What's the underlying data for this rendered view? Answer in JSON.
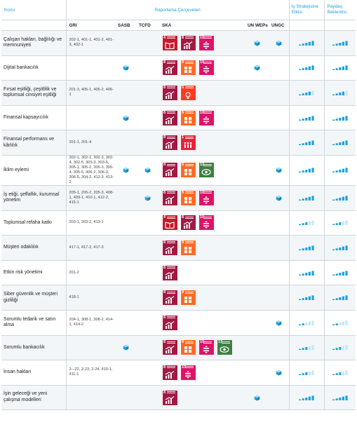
{
  "header": {
    "topic": "Konu",
    "frameworks": "Raporlama Çerçeveleri",
    "strategy_impact": "İş Stratejisine Etkisi",
    "stakeholder_expectation": "Paydaş Beklentisi"
  },
  "columns": {
    "gri": "GRI",
    "sasb": "SASB",
    "tcfd": "TCFD",
    "ska": "SKA",
    "unweps": "UN WEPs",
    "ungc": "UNGC"
  },
  "colors": {
    "accent": "#1aa3e0",
    "bar_high": "#1aa3e0",
    "bar_low": "#c5e7f7",
    "sdg1": "#e5243b",
    "sdg4": "#c5192d",
    "sdg5": "#ff3a21",
    "sdg8": "#a21942",
    "sdg9": "#fd6925",
    "sdg10": "#dd1367",
    "sdg13": "#3f7e44"
  },
  "icons": {
    "framework_mark": "cube-icon",
    "rating": "rising-bars-icon"
  },
  "rows": [
    {
      "topic": "Çalışan hakları, bağlılığı ve memnuniyeti",
      "gri": "202-1, 401-1, 401-2, 401-3, 402-1",
      "sasb": false,
      "tcfd": false,
      "sdgs": [
        4,
        8,
        10
      ],
      "unweps": true,
      "ungc": true,
      "strategy": 5,
      "stakeholder": 5
    },
    {
      "topic": "Dijital bankacılık",
      "gri": "",
      "sasb": true,
      "tcfd": false,
      "sdgs": [
        8,
        9,
        10
      ],
      "unweps": true,
      "ungc": false,
      "strategy": 5,
      "stakeholder": 5
    },
    {
      "topic": "Fırsat eşitliği, çeşitlilik ve toplumsal cinsiyet eşitliği",
      "gri": "201-3, 405-1, 405-2, 406-1",
      "sasb": false,
      "tcfd": false,
      "sdgs": [
        8,
        5
      ],
      "unweps": false,
      "ungc": false,
      "strategy": 4,
      "stakeholder": 4
    },
    {
      "topic": "Finansal kapsayıcılık",
      "gri": "",
      "sasb": true,
      "tcfd": false,
      "sdgs": [
        8,
        9,
        10
      ],
      "unweps": false,
      "ungc": false,
      "strategy": 5,
      "stakeholder": 5
    },
    {
      "topic": "Finansal performans ve kârlılık",
      "gri": "201-1, 201-4",
      "sasb": false,
      "tcfd": false,
      "sdgs": [
        8,
        1
      ],
      "unweps": false,
      "ungc": false,
      "strategy": 5,
      "stakeholder": 5
    },
    {
      "topic": "İklim eylemi",
      "gri": "302-1, 302-2, 302-3, 302-4, 302-5, 303-3, 303-5, 305-1, 305-2, 305-3, 305-4, 305-5, 306-2, 306-3, 306-5, 304-2, 412-3, 413-2",
      "sasb": true,
      "tcfd": true,
      "sdgs": [
        8,
        9,
        13
      ],
      "unweps": false,
      "ungc": true,
      "strategy": 5,
      "stakeholder": 5
    },
    {
      "topic": "İş etiği, şeffaflık, kurumsal yönetim",
      "gri": "205-1, 205-2, 205-3, 408-1, 409-1, 410-1, 412-2, 415-1",
      "sasb": false,
      "tcfd": true,
      "sdgs": [
        8,
        9,
        10
      ],
      "unweps": false,
      "ungc": true,
      "strategy": 5,
      "stakeholder": 5
    },
    {
      "topic": "Toplumsal refaha katkı",
      "gri": "203-1, 203-2, 413-1",
      "sasb": false,
      "tcfd": false,
      "sdgs": [
        4,
        8,
        10
      ],
      "unweps": false,
      "ungc": false,
      "strategy": 3,
      "stakeholder": 3
    },
    {
      "topic": "Müşteri odaklılık",
      "gri": "417-1, 417-2, 417-3",
      "sasb": false,
      "tcfd": false,
      "sdgs": [
        8,
        9
      ],
      "unweps": false,
      "ungc": false,
      "strategy": 5,
      "stakeholder": 5
    },
    {
      "topic": "Etkin risk yönetimi",
      "gri": "201-2",
      "sasb": false,
      "tcfd": false,
      "sdgs": [
        8
      ],
      "unweps": false,
      "ungc": false,
      "strategy": 5,
      "stakeholder": 5
    },
    {
      "topic": "Siber güvenlik ve müşteri gizliliği",
      "gri": "418-1",
      "sasb": false,
      "tcfd": false,
      "sdgs": [
        8,
        9
      ],
      "unweps": false,
      "ungc": false,
      "strategy": 5,
      "stakeholder": 5
    },
    {
      "topic": "Sorumlu tedarik ve satın alma",
      "gri": "204-1, 308-1, 308-2, 414-1, 414-2",
      "sasb": false,
      "tcfd": false,
      "sdgs": [
        8
      ],
      "unweps": false,
      "ungc": true,
      "strategy": 2,
      "stakeholder": 2
    },
    {
      "topic": "Sorumlu bankacılık",
      "gri": "",
      "sasb": true,
      "tcfd": false,
      "sdgs": [
        8,
        9,
        10,
        13
      ],
      "unweps": false,
      "ungc": false,
      "strategy": 3,
      "stakeholder": 3
    },
    {
      "topic": "İnsan hakları",
      "gri": "2-–22, 2-23, 2-24, 410-1, 411-1",
      "sasb": false,
      "tcfd": false,
      "sdgs": [
        8,
        10
      ],
      "unweps": false,
      "ungc": true,
      "strategy": 3,
      "stakeholder": 3
    },
    {
      "topic": "İşin geleceği ve yeni çalışma modelleri",
      "gri": "",
      "sasb": false,
      "tcfd": false,
      "sdgs": [
        8
      ],
      "unweps": true,
      "ungc": false,
      "strategy": 5,
      "stakeholder": 5
    }
  ]
}
